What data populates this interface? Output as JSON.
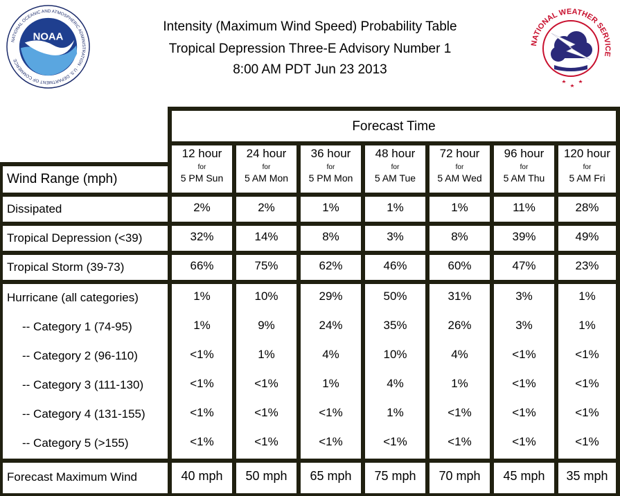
{
  "title_lines": [
    "Intensity (Maximum Wind Speed) Probability Table",
    "Tropical Depression Three-E Advisory Number 1",
    "8:00 AM PDT Jun 23 2013"
  ],
  "logos": {
    "noaa": {
      "center_text": "NOAA",
      "ring_text": "NATIONAL OCEANIC AND ATMOSPHERIC ADMINISTRATION · U.S. DEPARTMENT OF COMMERCE"
    },
    "nws": {
      "ring_text": "NATIONAL WEATHER SERVICE"
    }
  },
  "table": {
    "forecast_time_label": "Forecast Time",
    "wind_range_label": "Wind Range (mph)",
    "columns": [
      {
        "hours": "12 hour",
        "for": "for",
        "when": "5 PM Sun"
      },
      {
        "hours": "24 hour",
        "for": "for",
        "when": "5 AM Mon"
      },
      {
        "hours": "36 hour",
        "for": "for",
        "when": "5 PM Mon"
      },
      {
        "hours": "48 hour",
        "for": "for",
        "when": "5 AM Tue"
      },
      {
        "hours": "72 hour",
        "for": "for",
        "when": "5 AM Wed"
      },
      {
        "hours": "96 hour",
        "for": "for",
        "when": "5 AM Thu"
      },
      {
        "hours": "120 hour",
        "for": "for",
        "when": "5 AM Fri"
      }
    ],
    "rows": [
      {
        "label": "Dissipated",
        "values": [
          "2%",
          "2%",
          "1%",
          "1%",
          "1%",
          "11%",
          "28%"
        ]
      },
      {
        "label": "Tropical Depression (<39)",
        "values": [
          "32%",
          "14%",
          "8%",
          "3%",
          "8%",
          "39%",
          "49%"
        ]
      },
      {
        "label": "Tropical Storm (39-73)",
        "values": [
          "66%",
          "75%",
          "62%",
          "46%",
          "60%",
          "47%",
          "23%"
        ]
      }
    ],
    "hurricane_rows": [
      {
        "label": "Hurricane (all categories)",
        "values": [
          "1%",
          "10%",
          "29%",
          "50%",
          "31%",
          "3%",
          "1%"
        ]
      },
      {
        "label": "-- Category 1 (74-95)",
        "values": [
          "1%",
          "9%",
          "24%",
          "35%",
          "26%",
          "3%",
          "1%"
        ]
      },
      {
        "label": "-- Category 2 (96-110)",
        "values": [
          "<1%",
          "1%",
          "4%",
          "10%",
          "4%",
          "<1%",
          "<1%"
        ]
      },
      {
        "label": "-- Category 3 (111-130)",
        "values": [
          "<1%",
          "<1%",
          "1%",
          "4%",
          "1%",
          "<1%",
          "<1%"
        ]
      },
      {
        "label": "-- Category 4 (131-155)",
        "values": [
          "<1%",
          "<1%",
          "<1%",
          "1%",
          "<1%",
          "<1%",
          "<1%"
        ]
      },
      {
        "label": "-- Category 5 (>155)",
        "values": [
          "<1%",
          "<1%",
          "<1%",
          "<1%",
          "<1%",
          "<1%",
          "<1%"
        ]
      }
    ],
    "max_wind": {
      "label": "Forecast Maximum Wind",
      "values": [
        "40 mph",
        "50 mph",
        "65 mph",
        "75 mph",
        "70 mph",
        "45 mph",
        "35 mph"
      ]
    }
  }
}
